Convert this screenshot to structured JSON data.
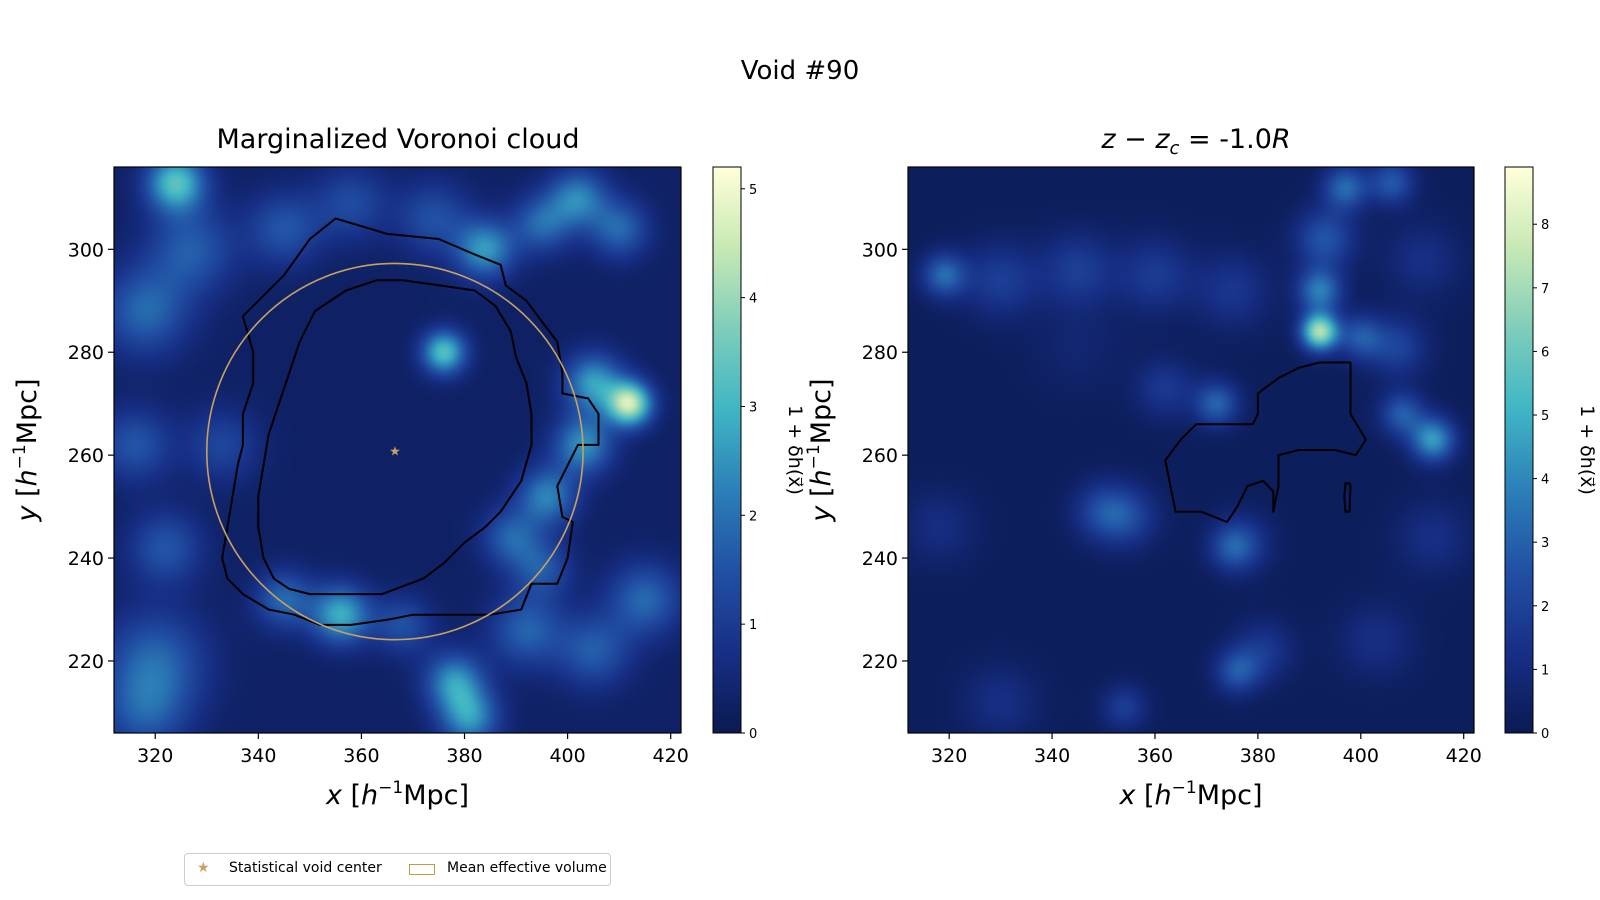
{
  "suptitle": "Void #90",
  "legend": {
    "center_label": "Statistical void center",
    "volume_label": "Mean effective volume"
  },
  "colors": {
    "colormap": [
      "#0b1a52",
      "#172f86",
      "#2150a4",
      "#2c7fb8",
      "#3fb6c4",
      "#7fcdbb",
      "#c7e9b4",
      "#ffffd9"
    ],
    "contour": "#000000",
    "circle": "#c9a060",
    "center_marker": "#c9a060"
  },
  "chart_data": [
    {
      "type": "heatmap",
      "title": "Marginalized Voronoi cloud",
      "xlabel": "x [h⁻¹Mpc]",
      "ylabel": "y [h⁻¹Mpc]",
      "xlim": [
        312,
        422
      ],
      "ylim": [
        206,
        316
      ],
      "xticks": [
        320,
        340,
        360,
        380,
        400,
        420
      ],
      "yticks": [
        220,
        240,
        260,
        280,
        300
      ],
      "colorbar": {
        "label": "1 + δh(x⃗)",
        "range": [
          0,
          5.2
        ],
        "ticks": [
          0,
          1,
          2,
          3,
          4,
          5
        ]
      },
      "blobs": [
        {
          "x": 324,
          "y": 313,
          "amp": 3.0,
          "s": 4
        },
        {
          "x": 327,
          "y": 300,
          "amp": 1.4,
          "s": 6
        },
        {
          "x": 318,
          "y": 288,
          "amp": 1.6,
          "s": 6
        },
        {
          "x": 316,
          "y": 262,
          "amp": 1.3,
          "s": 5
        },
        {
          "x": 322,
          "y": 242,
          "amp": 1.3,
          "s": 5
        },
        {
          "x": 320,
          "y": 220,
          "amp": 1.5,
          "s": 7
        },
        {
          "x": 345,
          "y": 304,
          "amp": 1.3,
          "s": 5
        },
        {
          "x": 358,
          "y": 309,
          "amp": 1.1,
          "s": 5
        },
        {
          "x": 374,
          "y": 306,
          "amp": 1.2,
          "s": 5
        },
        {
          "x": 384,
          "y": 300,
          "amp": 2.3,
          "s": 4
        },
        {
          "x": 395,
          "y": 305,
          "amp": 1.6,
          "s": 4
        },
        {
          "x": 402,
          "y": 310,
          "amp": 2.0,
          "s": 4
        },
        {
          "x": 410,
          "y": 304,
          "amp": 1.6,
          "s": 4
        },
        {
          "x": 376,
          "y": 280,
          "amp": 3.0,
          "s": 3
        },
        {
          "x": 412,
          "y": 270,
          "amp": 4.2,
          "s": 3
        },
        {
          "x": 405,
          "y": 274,
          "amp": 2.4,
          "s": 4
        },
        {
          "x": 403,
          "y": 262,
          "amp": 2.2,
          "s": 4
        },
        {
          "x": 396,
          "y": 252,
          "amp": 2.0,
          "s": 4
        },
        {
          "x": 389,
          "y": 244,
          "amp": 1.5,
          "s": 4
        },
        {
          "x": 395,
          "y": 238,
          "amp": 1.3,
          "s": 4
        },
        {
          "x": 356,
          "y": 229,
          "amp": 2.6,
          "s": 4
        },
        {
          "x": 345,
          "y": 232,
          "amp": 1.6,
          "s": 4
        },
        {
          "x": 368,
          "y": 227,
          "amp": 1.2,
          "s": 4
        },
        {
          "x": 378,
          "y": 216,
          "amp": 2.2,
          "s": 4
        },
        {
          "x": 381,
          "y": 209,
          "amp": 2.2,
          "s": 4
        },
        {
          "x": 392,
          "y": 226,
          "amp": 1.5,
          "s": 5
        },
        {
          "x": 405,
          "y": 222,
          "amp": 1.4,
          "s": 5
        },
        {
          "x": 415,
          "y": 232,
          "amp": 1.6,
          "s": 5
        },
        {
          "x": 318,
          "y": 210,
          "amp": 1.2,
          "s": 6
        },
        {
          "x": 333,
          "y": 262,
          "amp": 1.0,
          "s": 5
        }
      ],
      "contours": [
        [
          [
            355,
            306
          ],
          [
            365,
            303
          ],
          [
            375,
            302
          ],
          [
            382,
            299
          ],
          [
            387,
            297
          ],
          [
            388,
            293
          ],
          [
            392,
            290
          ],
          [
            395,
            286
          ],
          [
            398,
            282
          ],
          [
            399,
            276
          ],
          [
            399,
            272
          ],
          [
            404,
            271
          ],
          [
            406,
            268
          ],
          [
            406,
            264
          ],
          [
            406,
            262
          ],
          [
            402,
            262
          ],
          [
            398,
            254
          ],
          [
            399,
            248
          ],
          [
            401,
            247
          ],
          [
            400,
            240
          ],
          [
            398,
            235
          ],
          [
            393,
            235
          ],
          [
            391,
            230
          ],
          [
            385,
            229
          ],
          [
            378,
            229
          ],
          [
            370,
            229
          ],
          [
            365,
            228
          ],
          [
            358,
            227
          ],
          [
            352,
            227
          ],
          [
            347,
            229
          ],
          [
            342,
            230
          ],
          [
            337,
            233
          ],
          [
            334,
            236
          ],
          [
            333,
            240
          ],
          [
            334,
            246
          ],
          [
            335,
            252
          ],
          [
            336,
            258
          ],
          [
            337,
            262
          ],
          [
            337,
            268
          ],
          [
            339,
            274
          ],
          [
            339,
            280
          ],
          [
            337,
            287
          ],
          [
            345,
            295
          ],
          [
            350,
            302
          ],
          [
            355,
            306
          ]
        ],
        [
          [
            368,
            294
          ],
          [
            375,
            293
          ],
          [
            382,
            292
          ],
          [
            386,
            289
          ],
          [
            389,
            284
          ],
          [
            390,
            279
          ],
          [
            392,
            274
          ],
          [
            393,
            268
          ],
          [
            393,
            262
          ],
          [
            391,
            255
          ],
          [
            387,
            249
          ],
          [
            384,
            246
          ],
          [
            380,
            243
          ],
          [
            376,
            239
          ],
          [
            372,
            236
          ],
          [
            364,
            233
          ],
          [
            357,
            233
          ],
          [
            350,
            233
          ],
          [
            346,
            234
          ],
          [
            343,
            236
          ],
          [
            341,
            240
          ],
          [
            340,
            246
          ],
          [
            340,
            252
          ],
          [
            341,
            258
          ],
          [
            342,
            264
          ],
          [
            344,
            270
          ],
          [
            346,
            276
          ],
          [
            348,
            282
          ],
          [
            351,
            288
          ],
          [
            357,
            292
          ],
          [
            363,
            294
          ],
          [
            368,
            294
          ]
        ]
      ],
      "circle": {
        "center": [
          366.5,
          260.7
        ],
        "radius": 36.5
      },
      "center_marker": {
        "x": 366.5,
        "y": 260.7
      }
    },
    {
      "type": "heatmap",
      "title": "z − zc = -1.0R",
      "xlabel": "x [h⁻¹Mpc]",
      "ylabel": "y [h⁻¹Mpc]",
      "xlim": [
        312,
        422
      ],
      "ylim": [
        206,
        316
      ],
      "xticks": [
        320,
        340,
        360,
        380,
        400,
        420
      ],
      "yticks": [
        220,
        240,
        260,
        280,
        300
      ],
      "colorbar": {
        "label": "1 + δh(x⃗)",
        "range": [
          0,
          8.9
        ],
        "ticks": [
          0,
          1,
          2,
          3,
          4,
          5,
          6,
          7,
          8
        ]
      },
      "blobs": [
        {
          "x": 319,
          "y": 295,
          "amp": 3.0,
          "s": 3
        },
        {
          "x": 330,
          "y": 294,
          "amp": 1.6,
          "s": 5
        },
        {
          "x": 345,
          "y": 296,
          "amp": 1.6,
          "s": 5
        },
        {
          "x": 360,
          "y": 295,
          "amp": 1.5,
          "s": 5
        },
        {
          "x": 375,
          "y": 292,
          "amp": 1.3,
          "s": 5
        },
        {
          "x": 392,
          "y": 284,
          "amp": 7.0,
          "s": 2.5
        },
        {
          "x": 392,
          "y": 292,
          "amp": 3.5,
          "s": 3
        },
        {
          "x": 393,
          "y": 302,
          "amp": 2.4,
          "s": 4
        },
        {
          "x": 397,
          "y": 312,
          "amp": 3.0,
          "s": 3
        },
        {
          "x": 406,
          "y": 313,
          "amp": 2.5,
          "s": 3
        },
        {
          "x": 400,
          "y": 283,
          "amp": 2.4,
          "s": 3
        },
        {
          "x": 407,
          "y": 281,
          "amp": 1.8,
          "s": 4
        },
        {
          "x": 414,
          "y": 263,
          "amp": 4.2,
          "s": 3
        },
        {
          "x": 408,
          "y": 268,
          "amp": 2.6,
          "s": 3
        },
        {
          "x": 372,
          "y": 270,
          "amp": 2.8,
          "s": 3
        },
        {
          "x": 362,
          "y": 273,
          "amp": 1.4,
          "s": 4
        },
        {
          "x": 350,
          "y": 249,
          "amp": 2.0,
          "s": 4
        },
        {
          "x": 355,
          "y": 248,
          "amp": 1.6,
          "s": 4
        },
        {
          "x": 375,
          "y": 242,
          "amp": 1.8,
          "s": 3
        },
        {
          "x": 377,
          "y": 243,
          "amp": 1.4,
          "s": 4
        },
        {
          "x": 376,
          "y": 218,
          "amp": 2.4,
          "s": 3
        },
        {
          "x": 381,
          "y": 222,
          "amp": 1.4,
          "s": 4
        },
        {
          "x": 354,
          "y": 211,
          "amp": 1.6,
          "s": 3
        },
        {
          "x": 330,
          "y": 212,
          "amp": 1.0,
          "s": 5
        },
        {
          "x": 318,
          "y": 246,
          "amp": 0.9,
          "s": 5
        },
        {
          "x": 345,
          "y": 281,
          "amp": 0.5,
          "s": 6
        },
        {
          "x": 403,
          "y": 224,
          "amp": 1.0,
          "s": 5
        },
        {
          "x": 414,
          "y": 244,
          "amp": 1.0,
          "s": 5
        },
        {
          "x": 412,
          "y": 298,
          "amp": 1.0,
          "s": 5
        }
      ],
      "contours": [
        [
          [
            364,
            249
          ],
          [
            369,
            249
          ],
          [
            374,
            247
          ],
          [
            376,
            250
          ],
          [
            378,
            254
          ],
          [
            381,
            255
          ],
          [
            383,
            253
          ],
          [
            383,
            249
          ],
          [
            384,
            254
          ],
          [
            384,
            260
          ],
          [
            388,
            261
          ],
          [
            395,
            261
          ],
          [
            399,
            260
          ],
          [
            401,
            263
          ],
          [
            398,
            268
          ],
          [
            398,
            276
          ],
          [
            398,
            278
          ],
          [
            392,
            278
          ],
          [
            388,
            277
          ],
          [
            384,
            275
          ],
          [
            380,
            272
          ],
          [
            380,
            268
          ],
          [
            379,
            266
          ],
          [
            374,
            266
          ],
          [
            368,
            266
          ],
          [
            365,
            263
          ],
          [
            362,
            259
          ],
          [
            363,
            254
          ],
          [
            364,
            249
          ]
        ],
        [
          [
            397,
            249
          ],
          [
            397.8,
            249
          ],
          [
            398,
            254
          ],
          [
            397.8,
            254.5
          ],
          [
            397,
            254.5
          ],
          [
            396.8,
            252
          ],
          [
            397,
            249
          ]
        ]
      ]
    }
  ]
}
